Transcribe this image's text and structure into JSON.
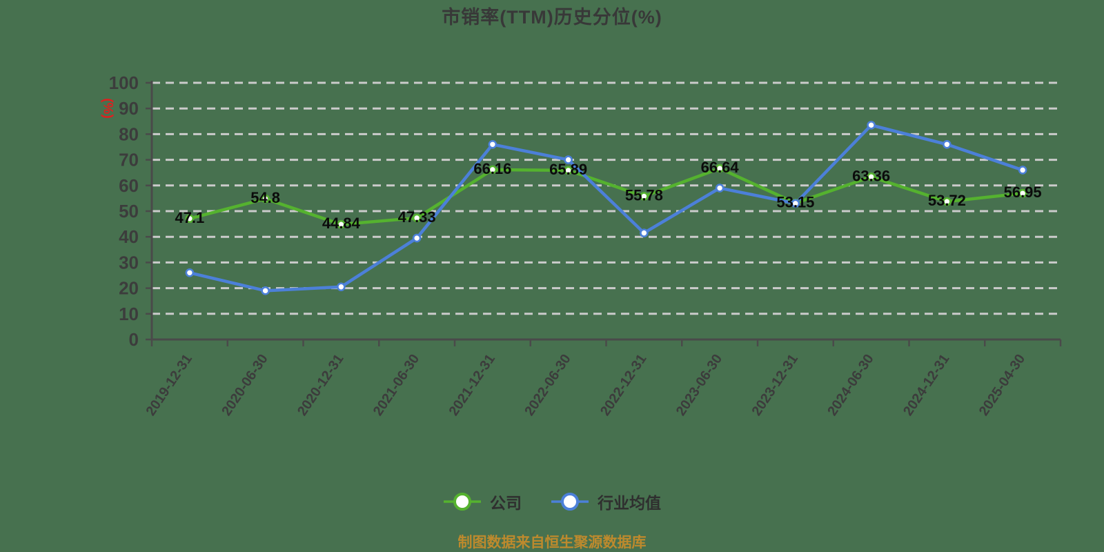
{
  "page": {
    "title": "市销率(TTM)历史分位(%)",
    "footer_note": "制图数据来自恒生聚源数据库"
  },
  "colors": {
    "background": "#47714F",
    "company": "#55B22F",
    "industry": "#4C80D9",
    "grid": "#CBCBCB",
    "axis": "#4A4A4A",
    "tick_text": "#3C3C3C",
    "data_label": "#0B0B0B",
    "unit_label": "#E11E1E",
    "title_text": "#383838",
    "legend_text": "#2F2F2F",
    "footer_text": "#BE8A2D"
  },
  "legend": {
    "items": [
      {
        "id": "company",
        "label": "公司",
        "color": "#55B22F"
      },
      {
        "id": "industry",
        "label": "行业均值",
        "color": "#4C80D9"
      }
    ]
  },
  "chart_data": {
    "type": "line",
    "title": "市销率(TTM)历史分位(%)",
    "xlabel": "",
    "ylabel": "(%)",
    "ylim": [
      0,
      100
    ],
    "y_ticks": [
      0,
      10,
      20,
      30,
      40,
      50,
      60,
      70,
      80,
      90,
      100
    ],
    "grid": "horizontal-dashed",
    "legend_position": "bottom",
    "categories": [
      "2019-12-31",
      "2020-06-30",
      "2020-12-31",
      "2021-06-30",
      "2021-12-31",
      "2022-06-30",
      "2022-12-31",
      "2023-06-30",
      "2023-12-31",
      "2024-06-30",
      "2024-12-31",
      "2025-04-30"
    ],
    "series": [
      {
        "name": "公司",
        "color": "#55B22F",
        "values": [
          47.1,
          54.8,
          44.84,
          47.33,
          66.16,
          65.89,
          55.78,
          66.64,
          53.15,
          63.36,
          53.72,
          56.95
        ],
        "data_labels": [
          "47.1",
          "54.8",
          "44.84",
          "47.33",
          "66.16",
          "65.89",
          "55.78",
          "66.64",
          "53.15",
          "63.36",
          "53.72",
          "56.95"
        ]
      },
      {
        "name": "行业均值",
        "color": "#4C80D9",
        "values": [
          26,
          19,
          20.5,
          39.5,
          76,
          70,
          41.5,
          59,
          53,
          83.5,
          76,
          66
        ],
        "data_labels": null
      }
    ]
  }
}
